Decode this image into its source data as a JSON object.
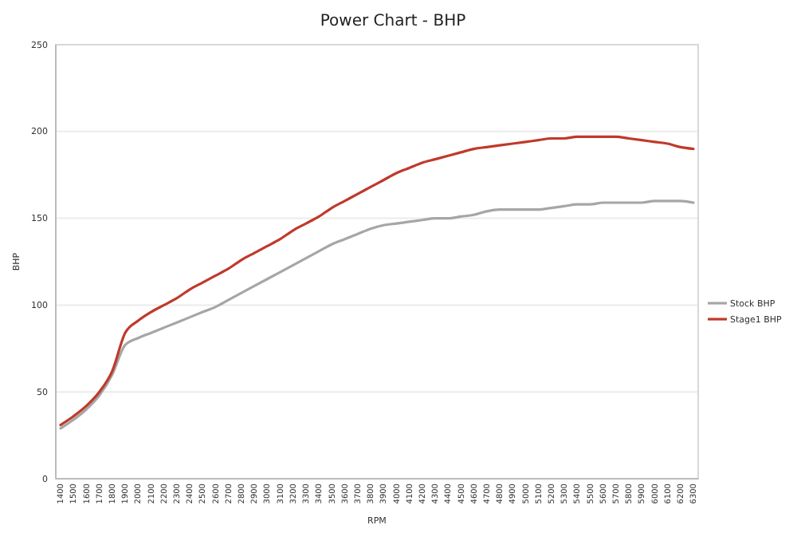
{
  "chart_data": {
    "type": "line",
    "title": "Power Chart - BHP",
    "xlabel": "RPM",
    "ylabel": "BHP",
    "categories": [
      "1400",
      "1500",
      "1600",
      "1700",
      "1800",
      "1900",
      "2000",
      "2100",
      "2200",
      "2300",
      "2400",
      "2500",
      "2600",
      "2700",
      "2800",
      "2900",
      "3000",
      "3100",
      "3200",
      "3300",
      "3400",
      "3500",
      "3600",
      "3700",
      "3800",
      "3900",
      "4000",
      "4100",
      "4200",
      "4300",
      "4400",
      "4500",
      "4600",
      "4700",
      "4800",
      "4900",
      "5000",
      "5100",
      "5200",
      "5300",
      "5400",
      "5500",
      "5600",
      "5700",
      "5800",
      "5900",
      "6000",
      "6100",
      "6200",
      "6300"
    ],
    "series": [
      {
        "name": "Stock BHP",
        "color": "#a6a6a6",
        "values": [
          29,
          34,
          40,
          48,
          60,
          77,
          81,
          84,
          87,
          90,
          93,
          96,
          99,
          103,
          107,
          111,
          115,
          119,
          123,
          127,
          131,
          135,
          138,
          141,
          144,
          146,
          147,
          148,
          149,
          150,
          150,
          151,
          152,
          154,
          155,
          155,
          155,
          155,
          156,
          157,
          158,
          158,
          159,
          159,
          159,
          159,
          160,
          160,
          160,
          159
        ]
      },
      {
        "name": "Stage1 BHP",
        "color": "#c0392b",
        "values": [
          31,
          36,
          42,
          50,
          62,
          84,
          91,
          96,
          100,
          104,
          109,
          113,
          117,
          121,
          126,
          130,
          134,
          138,
          143,
          147,
          151,
          156,
          160,
          164,
          168,
          172,
          176,
          179,
          182,
          184,
          186,
          188,
          190,
          191,
          192,
          193,
          194,
          195,
          196,
          196,
          197,
          197,
          197,
          197,
          196,
          195,
          194,
          193,
          191,
          190
        ]
      }
    ],
    "ylim": [
      0,
      250
    ],
    "yticks": [
      0,
      50,
      100,
      150,
      200,
      250
    ],
    "grid": "y",
    "legend": "right",
    "marker": "none",
    "line_style": "solid"
  }
}
